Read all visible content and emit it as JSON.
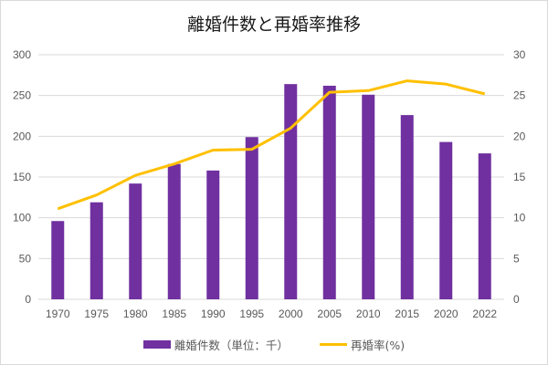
{
  "chart_data": {
    "type": "bar+line",
    "title": "離婚件数と再婚率推移",
    "categories": [
      "1970",
      "1975",
      "1980",
      "1985",
      "1990",
      "1995",
      "2000",
      "2005",
      "2010",
      "2015",
      "2020",
      "2022"
    ],
    "series": [
      {
        "name": "離婚件数（単位：千）",
        "type": "bar",
        "axis": "left",
        "color": "#7030a0",
        "values": [
          96,
          119,
          142,
          166,
          158,
          199,
          264,
          262,
          251,
          226,
          193,
          179
        ]
      },
      {
        "name": "再婚率(%)",
        "type": "line",
        "axis": "right",
        "color": "#ffc000",
        "values": [
          11.1,
          12.8,
          15.2,
          16.6,
          18.3,
          18.4,
          21.0,
          25.4,
          25.6,
          26.8,
          26.4,
          25.2
        ]
      }
    ],
    "y_left": {
      "min": 0,
      "max": 300,
      "ticks": [
        "0",
        "50",
        "100",
        "150",
        "200",
        "250",
        "300"
      ]
    },
    "y_right": {
      "min": 0,
      "max": 30,
      "ticks": [
        "0",
        "5",
        "10",
        "15",
        "20",
        "25",
        "30"
      ]
    },
    "xlabel": "",
    "ylabel": "",
    "grid": true,
    "legend_position": "bottom"
  }
}
